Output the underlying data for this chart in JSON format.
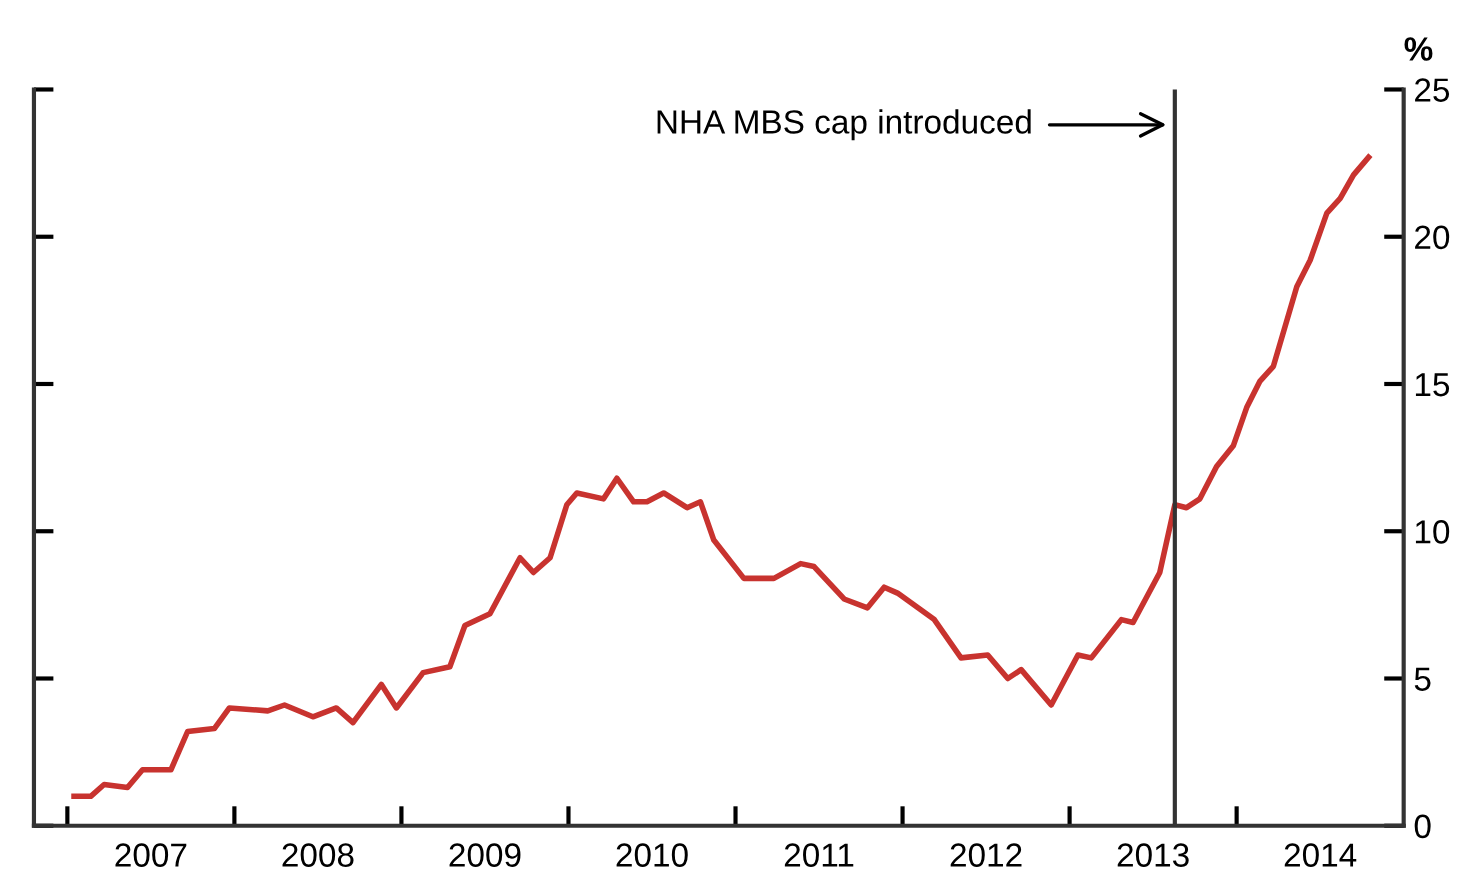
{
  "chart_data": {
    "type": "line",
    "ylabel": "%",
    "x": [
      2007.04,
      2007.14,
      2007.22,
      2007.36,
      2007.45,
      2007.62,
      2007.72,
      2007.88,
      2007.97,
      2008.2,
      2008.3,
      2008.47,
      2008.61,
      2008.71,
      2008.88,
      2008.97,
      2009.13,
      2009.29,
      2009.38,
      2009.53,
      2009.71,
      2009.79,
      2009.89,
      2009.99,
      2010.05,
      2010.21,
      2010.29,
      2010.39,
      2010.47,
      2010.57,
      2010.71,
      2010.79,
      2010.87,
      2011.05,
      2011.23,
      2011.39,
      2011.47,
      2011.65,
      2011.79,
      2011.89,
      2011.97,
      2012.19,
      2012.35,
      2012.51,
      2012.63,
      2012.71,
      2012.89,
      2013.05,
      2013.13,
      2013.31,
      2013.38,
      2013.54,
      2013.63,
      2013.7,
      2013.78,
      2013.88,
      2013.98,
      2014.06,
      2014.14,
      2014.22,
      2014.36,
      2014.44,
      2014.54,
      2014.62,
      2014.7,
      2014.79
    ],
    "series": [
      {
        "color": "#c8332f",
        "values": [
          1.0,
          1.0,
          1.4,
          1.3,
          1.9,
          1.9,
          3.2,
          3.3,
          4.0,
          3.9,
          4.1,
          3.7,
          4.0,
          3.5,
          4.8,
          4.0,
          5.2,
          5.4,
          6.8,
          7.2,
          9.1,
          8.6,
          9.1,
          10.9,
          11.3,
          11.1,
          11.8,
          11.0,
          11.0,
          11.3,
          10.8,
          11.0,
          9.7,
          8.4,
          8.4,
          8.9,
          8.8,
          7.7,
          7.4,
          8.1,
          7.9,
          7.0,
          5.7,
          5.8,
          5.0,
          5.3,
          4.1,
          5.8,
          5.7,
          7.0,
          6.9,
          8.6,
          10.9,
          10.8,
          11.1,
          12.2,
          12.9,
          14.2,
          15.1,
          15.6,
          18.3,
          19.2,
          20.8,
          21.3,
          22.1,
          22.7
        ]
      }
    ],
    "xlim": [
      2006.8,
      2015.0
    ],
    "xticks": [
      {
        "value": 2007,
        "label": null
      },
      {
        "value": 2008,
        "label": null
      },
      {
        "value": 2009,
        "label": null
      },
      {
        "value": 2010,
        "label": null
      },
      {
        "value": 2011,
        "label": null
      },
      {
        "value": 2012,
        "label": null
      },
      {
        "value": 2013,
        "label": null
      },
      {
        "value": 2014,
        "label": null
      },
      {
        "value": 2007.5,
        "label": "2007"
      },
      {
        "value": 2008.5,
        "label": "2008"
      },
      {
        "value": 2009.5,
        "label": "2009"
      },
      {
        "value": 2010.5,
        "label": "2010"
      },
      {
        "value": 2011.5,
        "label": "2011"
      },
      {
        "value": 2012.5,
        "label": "2012"
      },
      {
        "value": 2013.5,
        "label": "2013"
      },
      {
        "value": 2014.5,
        "label": "2014"
      }
    ],
    "ylim": [
      0,
      25
    ],
    "yticks": [
      0,
      5,
      10,
      15,
      20,
      25
    ],
    "ref_lines": [
      {
        "axis": "x",
        "value": 2013.63,
        "color": "#333333"
      }
    ],
    "annotations": [
      "NHA MBS cap introduced"
    ],
    "grid": false,
    "legend": false,
    "marker": "none",
    "line_style": "solid"
  }
}
